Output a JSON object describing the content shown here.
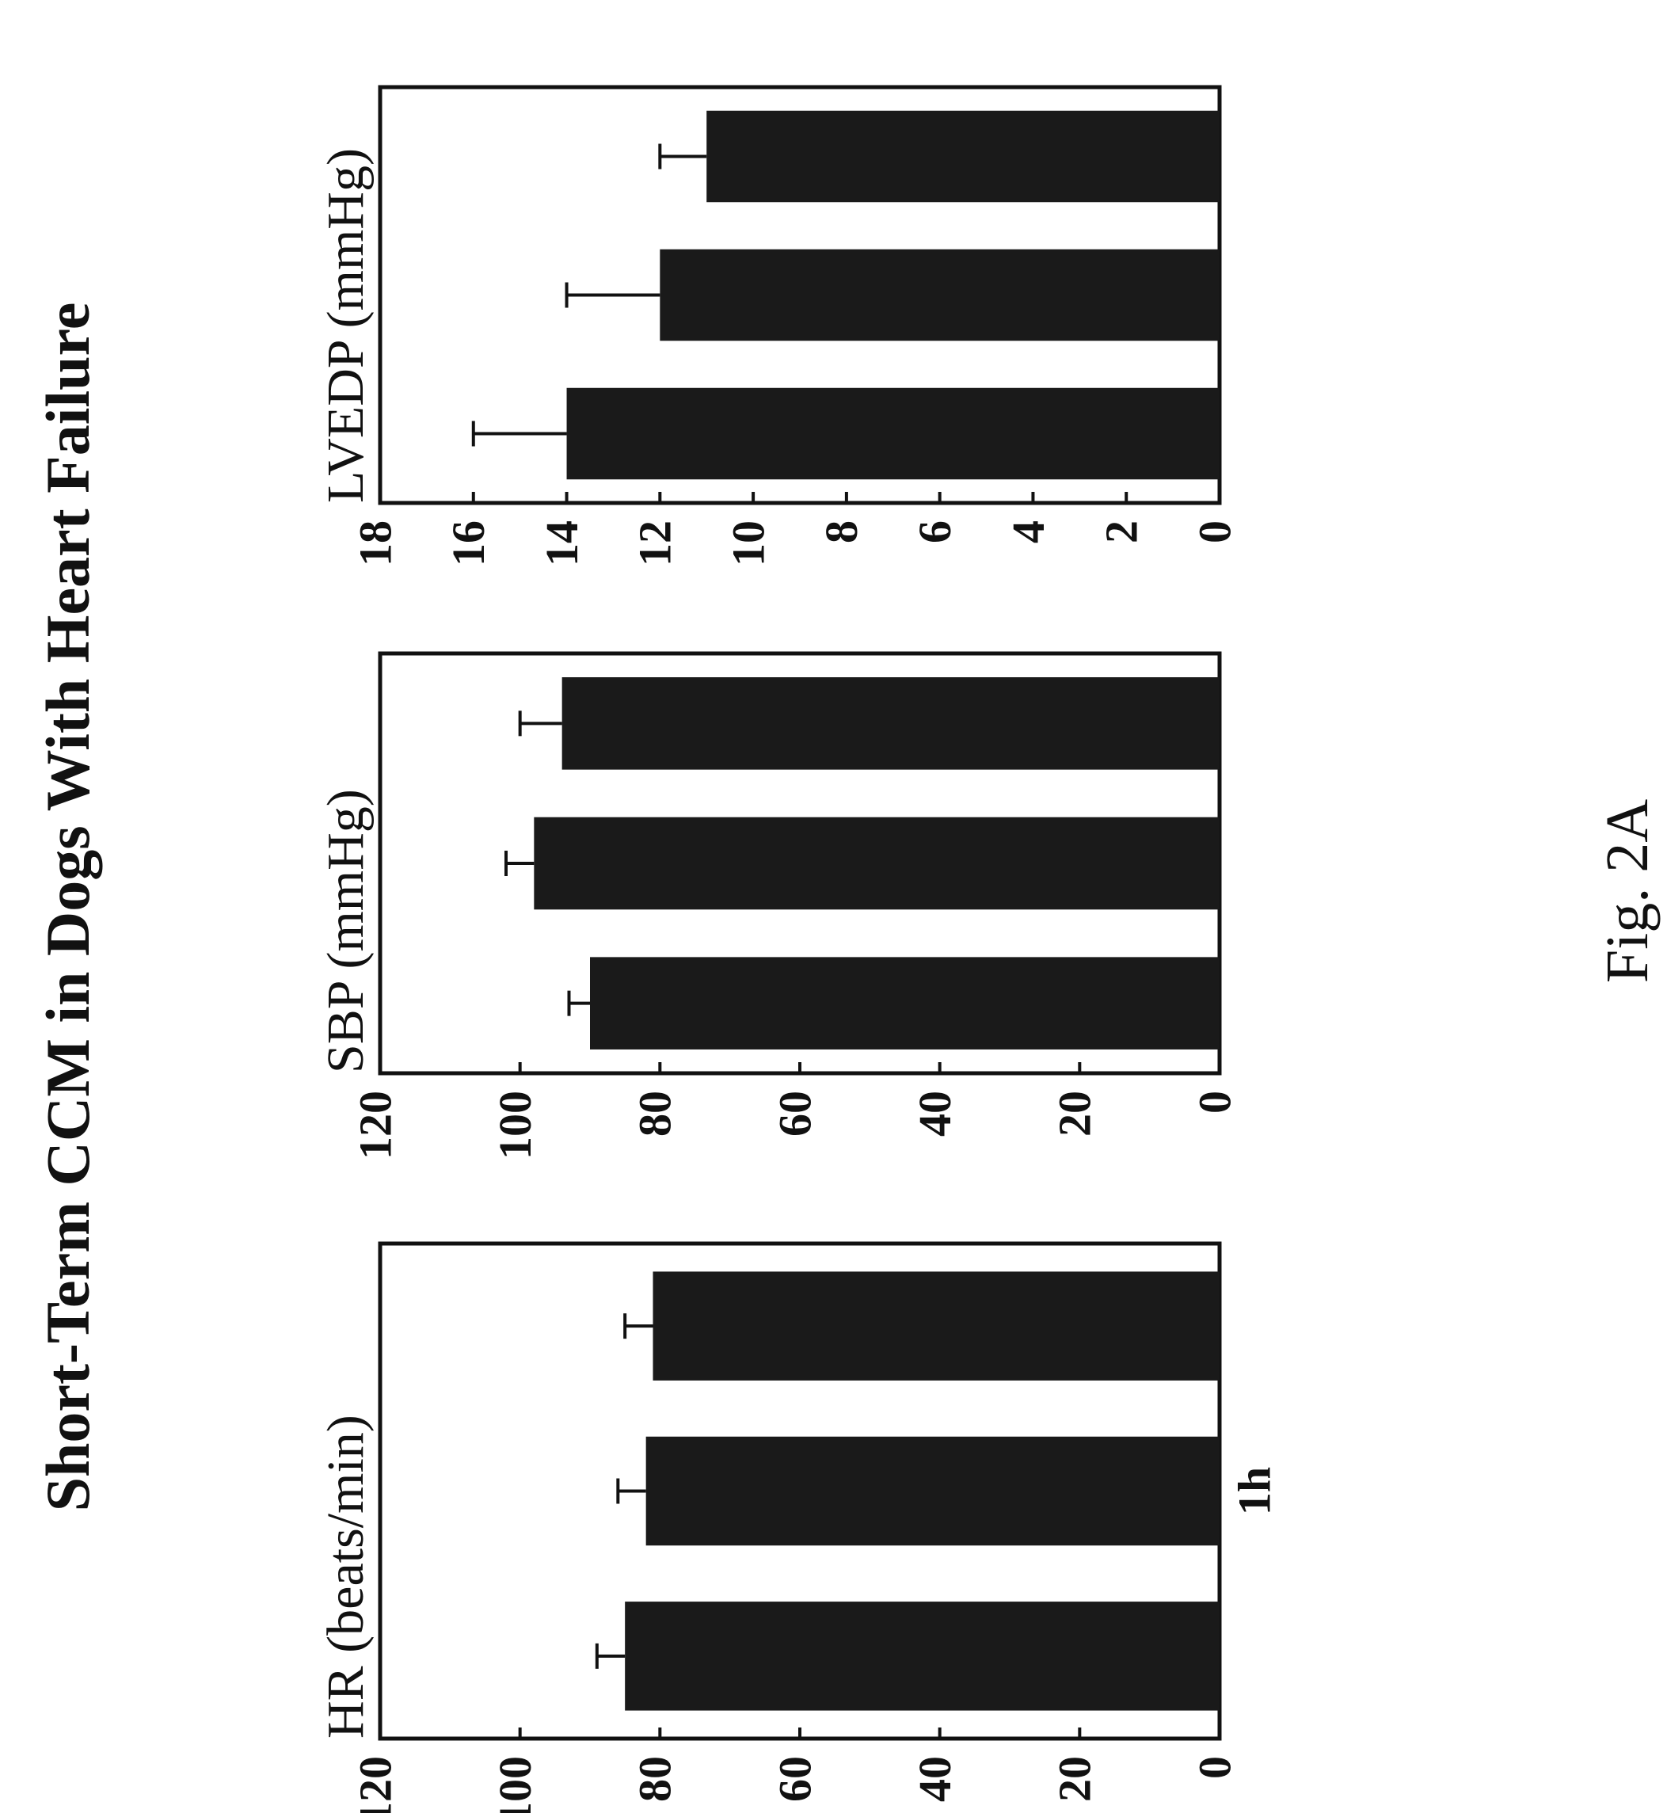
{
  "title": "Short-Term CCM in Dogs With Heart Failure",
  "figure_label": "Fig. 2A",
  "colors": {
    "bar": "#1a1a1a",
    "axis": "#111111",
    "background": "#ffffff"
  },
  "chart_data": [
    {
      "type": "bar",
      "ylabel": "HR (beats/min)",
      "ylim": [
        0,
        120
      ],
      "yticks": [
        0,
        20,
        40,
        60,
        80,
        100,
        120
      ],
      "categories": [
        "",
        "1h",
        ""
      ],
      "values": [
        85,
        82,
        81
      ],
      "errors": [
        4,
        4,
        4
      ],
      "grid": false,
      "legend": "none"
    },
    {
      "type": "bar",
      "ylabel": "SBP (mmHg)",
      "ylim": [
        0,
        120
      ],
      "yticks": [
        0,
        20,
        40,
        60,
        80,
        100,
        120
      ],
      "categories": [
        "",
        "",
        ""
      ],
      "values": [
        90,
        98,
        94
      ],
      "errors": [
        3,
        4,
        6
      ],
      "grid": false,
      "legend": "none"
    },
    {
      "type": "bar",
      "ylabel": "LVEDP (mmHg)",
      "ylim": [
        0,
        18
      ],
      "yticks": [
        0,
        2,
        4,
        6,
        8,
        10,
        12,
        14,
        16,
        18
      ],
      "categories": [
        "",
        "",
        ""
      ],
      "values": [
        14,
        12,
        11
      ],
      "errors": [
        2,
        2,
        1
      ],
      "grid": false,
      "legend": "none"
    }
  ]
}
